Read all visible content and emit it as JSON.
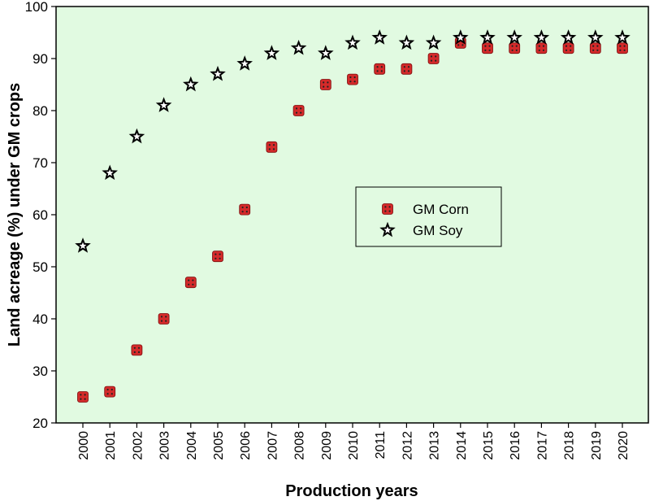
{
  "chart_data": {
    "type": "scatter",
    "title": "",
    "xlabel": "Production years",
    "ylabel": "Land acreage (%) under GM crops",
    "x": [
      "2000",
      "2001",
      "2002",
      "2003",
      "2004",
      "2005",
      "2006",
      "2007",
      "2008",
      "2009",
      "2010",
      "2011",
      "2012",
      "2013",
      "2014",
      "2015",
      "2016",
      "2017",
      "2018",
      "2019",
      "2020"
    ],
    "ylim": [
      20,
      100
    ],
    "yticks": [
      "20",
      "30",
      "40",
      "50",
      "60",
      "70",
      "80",
      "90",
      "100"
    ],
    "grid": false,
    "background_color": "#e1fae1",
    "legend_position": "center-right",
    "series": [
      {
        "name": "GM Corn",
        "marker": "square",
        "color": "#d42a2a",
        "values": [
          25,
          26,
          34,
          40,
          47,
          52,
          61,
          73,
          80,
          85,
          86,
          88,
          88,
          90,
          93,
          92,
          92,
          92,
          92,
          92,
          92
        ]
      },
      {
        "name": "GM Soy",
        "marker": "star",
        "color": "#000000",
        "values": [
          54,
          68,
          75,
          81,
          85,
          87,
          89,
          91,
          92,
          91,
          93,
          94,
          93,
          93,
          94,
          94,
          94,
          94,
          94,
          94,
          94
        ]
      }
    ]
  }
}
